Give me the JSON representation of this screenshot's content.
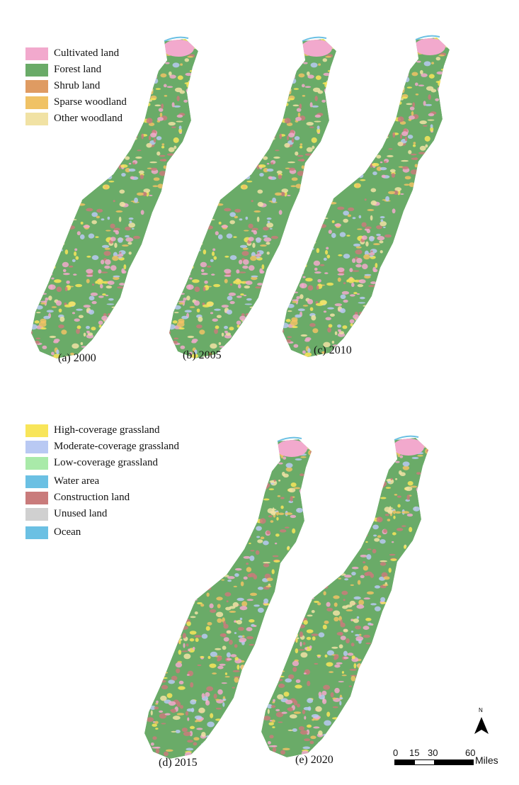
{
  "legend_top": [
    {
      "label": "Cultivated land",
      "color": "#f2a9cd"
    },
    {
      "label": "Forest land",
      "color": "#6aab68"
    },
    {
      "label": "Shrub land",
      "color": "#df9b62"
    },
    {
      "label": "Sparse woodland",
      "color": "#f0c265"
    },
    {
      "label": "Other woodland",
      "color": "#f1e2a4"
    }
  ],
  "legend_bottom": [
    {
      "label": "High-coverage grassland",
      "color": "#f8e55a"
    },
    {
      "label": "Moderate-coverage grassland",
      "color": "#b9c9f3"
    },
    {
      "label": "Low-coverage grassland",
      "color": "#a9eaa9"
    },
    {
      "label": "Water area",
      "color": "#6bc0e3"
    },
    {
      "label": "Construction land",
      "color": "#c97b7b"
    },
    {
      "label": "Unused land",
      "color": "#d0d0d0"
    },
    {
      "label": "Ocean",
      "color": "#6bc0e3"
    }
  ],
  "panels": [
    {
      "caption": "(a) 2000"
    },
    {
      "caption": "(b) 2005"
    },
    {
      "caption": "(c) 2010"
    },
    {
      "caption": "(d) 2015"
    },
    {
      "caption": "(e) 2020"
    }
  ],
  "north_arrow": {
    "label": "N"
  },
  "scale_bar": {
    "ticks": [
      "0",
      "15",
      "30",
      "60"
    ],
    "unit": "Miles"
  }
}
